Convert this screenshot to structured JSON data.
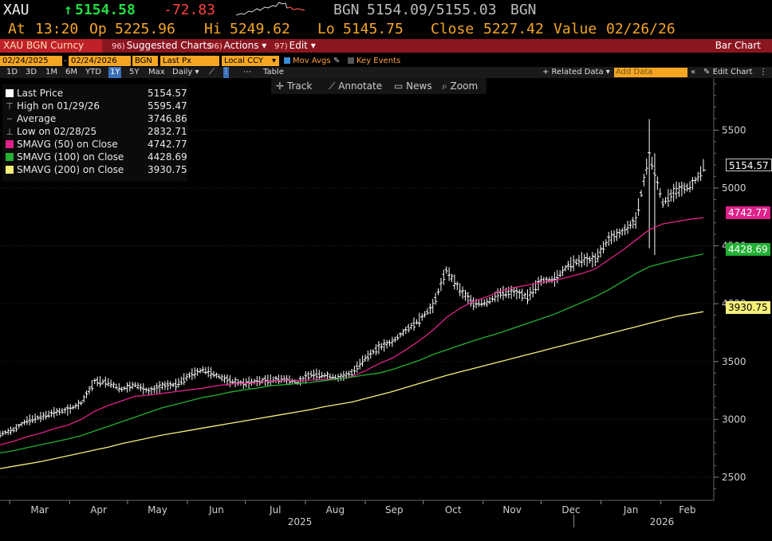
{
  "quote": {
    "ticker": "XAU",
    "arrow": "↑",
    "last": "5154.58",
    "change": "-72.83",
    "source": "BGN",
    "bid_ask": "5154.09/5155.03",
    "source2": "BGN",
    "at_label": "At",
    "time": "13:20",
    "op_label": "Op",
    "open": "5225.96",
    "hi_label": "Hi",
    "high": "5249.62",
    "lo_label": "Lo",
    "low": "5145.75",
    "close_label": "Close",
    "close": "5227.42",
    "value_label": "Value",
    "value_date": "02/26/26"
  },
  "menubar": {
    "security": "XAU BGN Curncy",
    "items": [
      {
        "num": "96)",
        "label": "Suggested Charts"
      },
      {
        "num": "96)",
        "label": "Actions ▾"
      },
      {
        "num": "97)",
        "label": "Edit ▾"
      }
    ],
    "view_title": "Bar Chart"
  },
  "settings": {
    "start_date": "02/24/2025",
    "end_date": "02/24/2026",
    "source": "BGN",
    "field": "Last Px",
    "currency": "Local CCY",
    "mov_avgs": "Mov Avgs",
    "key_events": "Key Events"
  },
  "ranges": {
    "items": [
      "1D",
      "3D",
      "1M",
      "6M",
      "YTD",
      "1Y",
      "5Y",
      "Max"
    ],
    "selected": "1Y",
    "period": "Daily ▾",
    "table": "Table",
    "related": "+ Related Data ▾",
    "add_placeholder": "Add Data",
    "edit_chart": "Edit Chart"
  },
  "tools": {
    "track": "Track",
    "annotate": "Annotate",
    "news": "News",
    "zoom": "Zoom"
  },
  "legend": [
    {
      "label": "Last Price",
      "value": "5154.57",
      "color": "#ffffff",
      "kind": "square"
    },
    {
      "label": "High on 01/29/26",
      "value": "5595.47",
      "color": "#aaaaaa",
      "kind": "high"
    },
    {
      "label": "Average",
      "value": "3746.86",
      "color": "#aaaaaa",
      "kind": "avg"
    },
    {
      "label": "Low on 02/28/25",
      "value": "2832.71",
      "color": "#aaaaaa",
      "kind": "low"
    },
    {
      "label": "SMAVG (50)  on Close",
      "value": "4742.77",
      "color": "#e0218a",
      "kind": "square"
    },
    {
      "label": "SMAVG (100)  on Close",
      "value": "4428.69",
      "color": "#22b033",
      "kind": "square"
    },
    {
      "label": "SMAVG (200)  on Close",
      "value": "3930.75",
      "color": "#f5f07a",
      "kind": "square"
    }
  ],
  "tags": {
    "last": "5154.57",
    "sma50": "4742.77",
    "sma100": "4428.69",
    "sma200": "3930.75"
  },
  "chart_data": {
    "type": "bar",
    "title": "",
    "y_ticks": [
      2500,
      3000,
      3500,
      4000,
      4500,
      5000,
      5500
    ],
    "ylim": [
      2300,
      5950
    ],
    "x_months": [
      "Mar",
      "Apr",
      "May",
      "Jun",
      "Jul",
      "Aug",
      "Sep",
      "Oct",
      "Nov",
      "Dec",
      "Jan",
      "Feb"
    ],
    "x_years": [
      "2025",
      "2026"
    ],
    "x_dates": [
      "2025-02-24",
      "2025-03-03",
      "2025-03-10",
      "2025-03-17",
      "2025-03-24",
      "2025-03-31",
      "2025-04-07",
      "2025-04-14",
      "2025-04-21",
      "2025-04-28",
      "2025-05-05",
      "2025-05-12",
      "2025-05-19",
      "2025-05-26",
      "2025-06-02",
      "2025-06-09",
      "2025-06-16",
      "2025-06-23",
      "2025-06-30",
      "2025-07-07",
      "2025-07-14",
      "2025-07-21",
      "2025-07-28",
      "2025-08-04",
      "2025-08-11",
      "2025-08-18",
      "2025-08-25",
      "2025-09-01",
      "2025-09-08",
      "2025-09-15",
      "2025-09-22",
      "2025-09-29",
      "2025-10-06",
      "2025-10-13",
      "2025-10-20",
      "2025-10-27",
      "2025-11-03",
      "2025-11-10",
      "2025-11-17",
      "2025-11-24",
      "2025-12-01",
      "2025-12-08",
      "2025-12-15",
      "2025-12-22",
      "2025-12-29",
      "2026-01-05",
      "2026-01-12",
      "2026-01-19",
      "2026-01-26",
      "2026-02-02",
      "2026-02-09",
      "2026-02-16",
      "2026-02-23"
    ],
    "series": [
      {
        "name": "Last Price",
        "color": "#ffffff",
        "values": [
          2870,
          2910,
          2990,
          3020,
          3060,
          3080,
          3140,
          3330,
          3320,
          3260,
          3300,
          3240,
          3290,
          3300,
          3380,
          3430,
          3380,
          3330,
          3310,
          3330,
          3340,
          3350,
          3320,
          3390,
          3380,
          3360,
          3400,
          3530,
          3620,
          3670,
          3770,
          3860,
          3980,
          4290,
          4120,
          4000,
          4010,
          4090,
          4100,
          4060,
          4200,
          4210,
          4330,
          4380,
          4380,
          4560,
          4620,
          4720,
          5300,
          4870,
          4980,
          5010,
          5154
        ]
      },
      {
        "name": "SMAVG (50) on Close",
        "color": "#e0218a",
        "values": [
          2780,
          2810,
          2850,
          2880,
          2920,
          2950,
          3000,
          3070,
          3120,
          3160,
          3200,
          3210,
          3225,
          3240,
          3255,
          3270,
          3290,
          3305,
          3310,
          3320,
          3330,
          3340,
          3335,
          3340,
          3345,
          3350,
          3370,
          3420,
          3480,
          3530,
          3600,
          3680,
          3770,
          3880,
          3960,
          4020,
          4060,
          4110,
          4140,
          4160,
          4185,
          4200,
          4230,
          4260,
          4300,
          4380,
          4460,
          4550,
          4640,
          4690,
          4710,
          4730,
          4743
        ]
      },
      {
        "name": "SMAVG (100) on Close",
        "color": "#22b033",
        "values": [
          2710,
          2730,
          2755,
          2780,
          2805,
          2830,
          2860,
          2900,
          2940,
          2980,
          3020,
          3060,
          3100,
          3130,
          3160,
          3190,
          3210,
          3235,
          3255,
          3270,
          3290,
          3300,
          3310,
          3320,
          3335,
          3350,
          3365,
          3385,
          3400,
          3430,
          3470,
          3510,
          3560,
          3600,
          3640,
          3680,
          3715,
          3750,
          3790,
          3830,
          3870,
          3910,
          3960,
          4010,
          4060,
          4120,
          4190,
          4260,
          4320,
          4350,
          4380,
          4405,
          4429
        ]
      },
      {
        "name": "SMAVG (200) on Close",
        "color": "#f5f07a",
        "values": [
          2575,
          2595,
          2615,
          2635,
          2660,
          2685,
          2710,
          2735,
          2760,
          2790,
          2815,
          2840,
          2865,
          2885,
          2905,
          2925,
          2945,
          2965,
          2985,
          3005,
          3025,
          3045,
          3065,
          3085,
          3110,
          3130,
          3150,
          3180,
          3210,
          3240,
          3275,
          3310,
          3345,
          3380,
          3410,
          3440,
          3470,
          3500,
          3530,
          3560,
          3590,
          3620,
          3650,
          3680,
          3710,
          3740,
          3770,
          3800,
          3830,
          3860,
          3890,
          3910,
          3931
        ]
      }
    ]
  }
}
